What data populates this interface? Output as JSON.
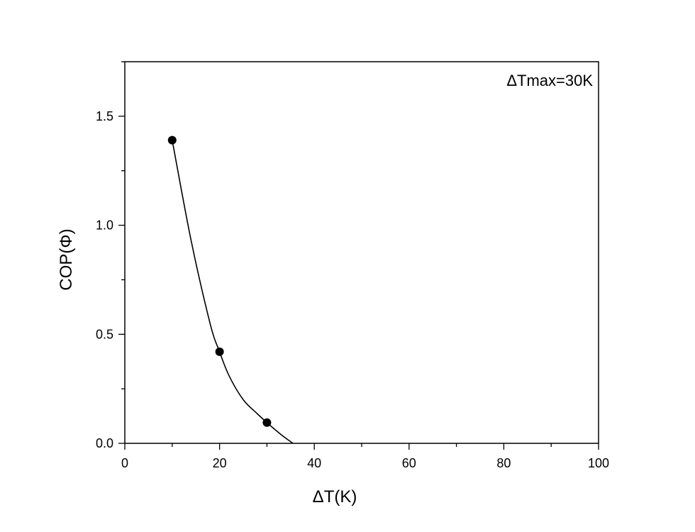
{
  "chart_data": {
    "type": "scatter",
    "title": "",
    "xlabel": "ΔT(K)",
    "ylabel": "COP(Φ)",
    "xlim": [
      0,
      100
    ],
    "ylim": [
      0,
      1.75
    ],
    "x_ticks": [
      "0",
      "20",
      "40",
      "60",
      "80",
      "100"
    ],
    "y_ticks": [
      "0.0",
      "0.5",
      "1.0",
      "1.5"
    ],
    "annotation": "ΔTmax=30K",
    "grid": false,
    "legend": "none",
    "series": [
      {
        "points": {
          "x": [
            10,
            20,
            30
          ],
          "y": [
            1.39,
            0.42,
            0.095
          ]
        },
        "curve": {
          "x": [
            10,
            14,
            18,
            20,
            22,
            25,
            28,
            30,
            33,
            35.5
          ],
          "y": [
            1.39,
            0.93,
            0.55,
            0.42,
            0.31,
            0.2,
            0.135,
            0.095,
            0.04,
            0.0
          ]
        }
      }
    ],
    "colors": {
      "marker": "#000000",
      "line": "#000000",
      "axis": "#000000"
    }
  }
}
